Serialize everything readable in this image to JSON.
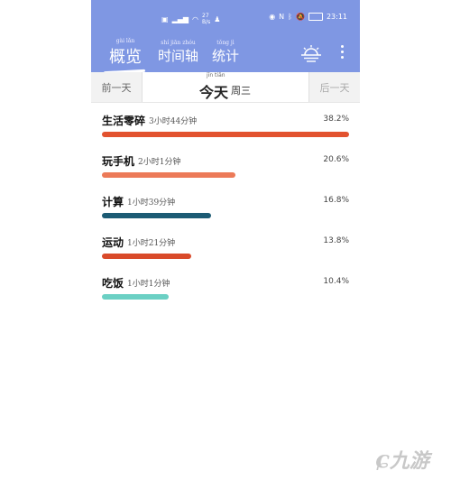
{
  "statusbar": {
    "speed": "27",
    "speed_unit": "B/s",
    "time": "23:11"
  },
  "tabs": [
    {
      "label": "概览",
      "pinyin": "gài lǎn"
    },
    {
      "label": "时间轴",
      "pinyin": "shí jiān zhóu"
    },
    {
      "label": "统计",
      "pinyin": "tǒng jì"
    }
  ],
  "daynav": {
    "prev": "前一天",
    "today": "今天",
    "today_pinyin": "jīn tiān",
    "weekday": "周三",
    "next": "后一天"
  },
  "items": [
    {
      "name": "生活零碎",
      "duration": "3小时44分钟",
      "percent": "38.2%",
      "fraction": 1.0,
      "color": "#e2522f"
    },
    {
      "name": "玩手机",
      "duration": "2小时1分钟",
      "percent": "20.6%",
      "fraction": 0.54,
      "color": "#ec7a58"
    },
    {
      "name": "计算",
      "duration": "1小时39分钟",
      "percent": "16.8%",
      "fraction": 0.44,
      "color": "#1c5b74"
    },
    {
      "name": "运动",
      "duration": "1小时21分钟",
      "percent": "13.8%",
      "fraction": 0.36,
      "color": "#d94a2a"
    },
    {
      "name": "吃饭",
      "duration": "1小时1分钟",
      "percent": "10.4%",
      "fraction": 0.27,
      "color": "#6bd0c4"
    }
  ],
  "watermark": {
    "text": "九游"
  },
  "icons": {
    "menu": "more-vertical-icon",
    "sunset": "sunset-icon"
  }
}
